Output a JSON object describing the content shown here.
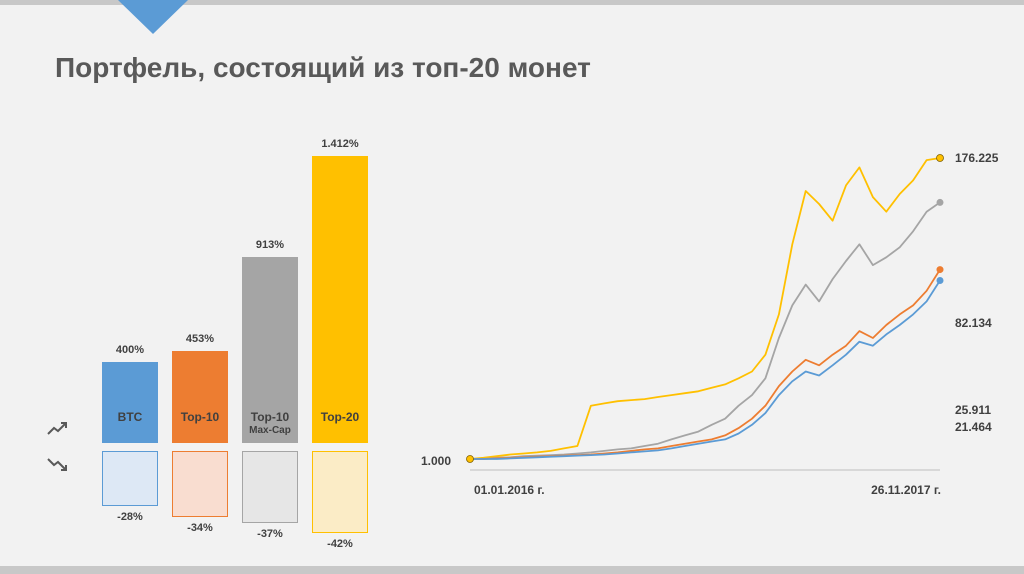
{
  "slide": {
    "title": "Портфель, состоящий из топ-20 монет",
    "accent_color": "#5b9bd5"
  },
  "chart_data": [
    {
      "type": "bar",
      "categories": [
        "BTC",
        "Top-10",
        "Top-10 Max-Cap",
        "Top-20"
      ],
      "category_lines": [
        [
          "BTC"
        ],
        [
          "Top-10"
        ],
        [
          "Top-10",
          "Max-Cap"
        ],
        [
          "Top-20"
        ]
      ],
      "series": [
        {
          "values": [
            400,
            453,
            913,
            1412
          ],
          "labels": [
            "400%",
            "453%",
            "913%",
            "1.412%"
          ]
        },
        {
          "values": [
            -28,
            -34,
            -37,
            -42
          ],
          "labels": [
            "-28%",
            "-34%",
            "-37%",
            "-42%"
          ]
        }
      ],
      "colors": [
        "#5b9bd5",
        "#ed7d31",
        "#a5a5a5",
        "#ffc000"
      ],
      "icons": [
        "trend-up-icon",
        "trend-down-icon"
      ]
    },
    {
      "type": "line",
      "x_start_label": "01.01.2016 г.",
      "x_end_label": "26.11.2017 г.",
      "y_start_label": "1.000",
      "log_scale": true,
      "grid": false,
      "series": [
        {
          "color": "#ffc000",
          "end_value": 176.225,
          "end_label": "176.225",
          "points": [
            1,
            1.02,
            1.05,
            1.08,
            1.1,
            1.12,
            1.15,
            1.2,
            1.25,
            2.5,
            2.6,
            2.7,
            2.75,
            2.8,
            2.9,
            3.0,
            3.1,
            3.2,
            3.4,
            3.6,
            4,
            4.5,
            6,
            12,
            40,
            100,
            80,
            60,
            110,
            150,
            90,
            70,
            95,
            120,
            170,
            176.225
          ]
        },
        {
          "color": "#a5a5a5",
          "end_value": 82.134,
          "end_label": "82.134",
          "points": [
            1,
            1.0,
            1.02,
            1.03,
            1.05,
            1.06,
            1.07,
            1.08,
            1.1,
            1.12,
            1.15,
            1.18,
            1.2,
            1.25,
            1.3,
            1.4,
            1.5,
            1.6,
            1.8,
            2,
            2.5,
            3,
            4,
            8,
            14,
            20,
            15,
            22,
            30,
            40,
            28,
            32,
            38,
            50,
            70,
            82.134
          ]
        },
        {
          "color": "#ed7d31",
          "end_value": 25.911,
          "end_label": "25.911",
          "points": [
            1,
            1.0,
            1.01,
            1.02,
            1.03,
            1.04,
            1.05,
            1.06,
            1.07,
            1.08,
            1.1,
            1.12,
            1.15,
            1.18,
            1.2,
            1.25,
            1.3,
            1.35,
            1.4,
            1.5,
            1.7,
            2,
            2.5,
            3.5,
            4.5,
            5.5,
            5,
            6,
            7,
            9,
            8,
            10,
            12,
            14,
            18,
            25.911
          ]
        },
        {
          "color": "#5b9bd5",
          "end_value": 21.464,
          "end_label": "21.464",
          "points": [
            1,
            1.0,
            1.0,
            1.01,
            1.02,
            1.03,
            1.04,
            1.05,
            1.06,
            1.07,
            1.08,
            1.1,
            1.12,
            1.14,
            1.16,
            1.2,
            1.25,
            1.3,
            1.35,
            1.4,
            1.55,
            1.8,
            2.2,
            3,
            3.8,
            4.5,
            4.2,
            5,
            6,
            7.5,
            7,
            8.5,
            10,
            12,
            15,
            21.464
          ]
        }
      ]
    }
  ]
}
